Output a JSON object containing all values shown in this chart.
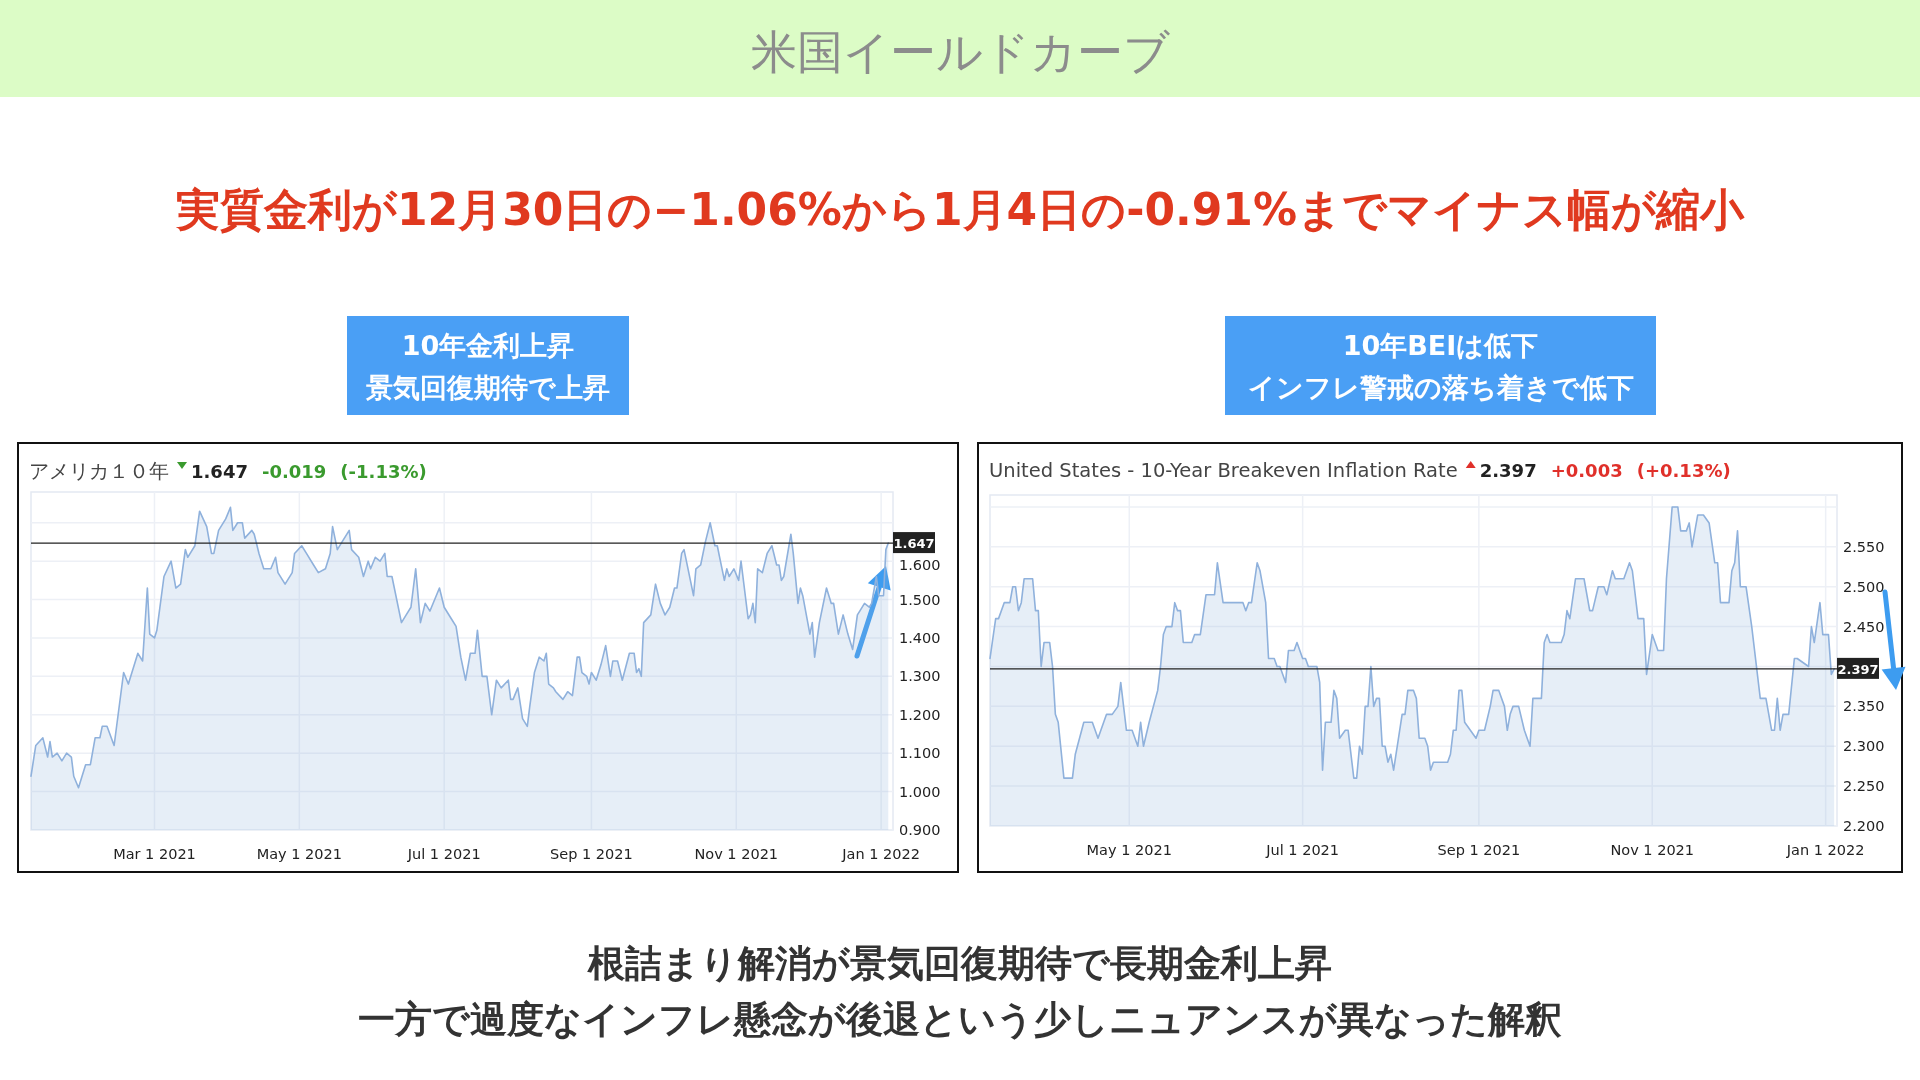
{
  "chart_data": [
    {
      "type": "other",
      "title": "米国イールドカーブ",
      "subtitle": "実質金利が12月30日の−1.06%から1月4日の-0.91%までマイナス幅が縮小",
      "annotations": [
        "根詰まり解消が景気回復期待で長期金利上昇",
        "一方で過度なインフレ懸念が後退という少しニュアンスが異なった解釈"
      ]
    },
    {
      "type": "area",
      "title": "アメリカ１０年",
      "annotations": [
        "10年金利上昇",
        "景気回復期待で上昇",
        "1.647",
        "-0.019",
        "(-1.13%)"
      ],
      "grid": true,
      "xlim": [
        "2021-01-08",
        "2022-01-06"
      ],
      "ylim": [
        0.9,
        1.78
      ],
      "xticks": [
        {
          "value": "2021-03-01",
          "label": "Mar 1 2021"
        },
        {
          "value": "2021-05-01",
          "label": "May 1 2021"
        },
        {
          "value": "2021-07-01",
          "label": "Jul 1 2021"
        },
        {
          "value": "2021-09-01",
          "label": "Sep 1 2021"
        },
        {
          "value": "2021-11-01",
          "label": "Nov 1 2021"
        },
        {
          "value": "2022-01-01",
          "label": "Jan 1 2022"
        }
      ],
      "yticks": [
        {
          "value": 0.9,
          "label": "0.900"
        },
        {
          "value": 1.0,
          "label": "1.000"
        },
        {
          "value": 1.1,
          "label": "1.100"
        },
        {
          "value": 1.2,
          "label": "1.200"
        },
        {
          "value": 1.3,
          "label": "1.300"
        },
        {
          "value": 1.4,
          "label": "1.400"
        },
        {
          "value": 1.5,
          "label": "1.500"
        },
        {
          "value": 1.6,
          "label": "1.600"
        },
        {
          "value": 1.7,
          "label": null
        }
      ],
      "ref_lines": [
        {
          "axis": "y",
          "value": 1.647,
          "label": "1.647",
          "color": "#222222"
        }
      ],
      "series": [
        {
          "color": "#8fb1dc",
          "x": [
            "2021-01-08",
            "2021-01-10",
            "2021-01-13",
            "2021-01-15",
            "2021-01-16",
            "2021-01-17",
            "2021-01-19",
            "2021-01-21",
            "2021-01-23",
            "2021-01-25",
            "2021-01-26",
            "2021-01-28",
            "2021-01-31",
            "2021-02-02",
            "2021-02-04",
            "2021-02-06",
            "2021-02-07",
            "2021-02-09",
            "2021-02-12",
            "2021-02-16",
            "2021-02-18",
            "2021-02-22",
            "2021-02-24",
            "2021-02-26",
            "2021-02-27",
            "2021-03-01",
            "2021-03-02",
            "2021-03-05",
            "2021-03-08",
            "2021-03-10",
            "2021-03-12",
            "2021-03-14",
            "2021-03-15",
            "2021-03-18",
            "2021-03-20",
            "2021-03-23",
            "2021-03-25",
            "2021-03-26",
            "2021-03-28",
            "2021-03-31",
            "2021-04-02",
            "2021-04-03",
            "2021-04-05",
            "2021-04-07",
            "2021-04-08",
            "2021-04-11",
            "2021-04-12",
            "2021-04-14",
            "2021-04-16",
            "2021-04-19",
            "2021-04-21",
            "2021-04-22",
            "2021-04-25",
            "2021-04-28",
            "2021-04-29",
            "2021-05-02",
            "2021-05-04",
            "2021-05-07",
            "2021-05-09",
            "2021-05-12",
            "2021-05-14",
            "2021-05-15",
            "2021-05-17",
            "2021-05-19",
            "2021-05-22",
            "2021-05-23",
            "2021-05-26",
            "2021-05-28",
            "2021-05-30",
            "2021-05-31",
            "2021-06-02",
            "2021-06-04",
            "2021-06-06",
            "2021-06-07",
            "2021-06-09",
            "2021-06-13",
            "2021-06-15",
            "2021-06-17",
            "2021-06-19",
            "2021-06-21",
            "2021-06-23",
            "2021-06-25",
            "2021-06-29",
            "2021-07-01",
            "2021-07-04",
            "2021-07-06",
            "2021-07-08",
            "2021-07-10",
            "2021-07-12",
            "2021-07-14",
            "2021-07-15",
            "2021-07-17",
            "2021-07-19",
            "2021-07-21",
            "2021-07-23",
            "2021-07-25",
            "2021-07-28",
            "2021-07-29",
            "2021-07-30",
            "2021-08-01",
            "2021-08-03",
            "2021-08-05",
            "2021-08-06",
            "2021-08-08",
            "2021-08-10",
            "2021-08-12",
            "2021-08-13",
            "2021-08-14",
            "2021-08-16",
            "2021-08-17",
            "2021-08-20",
            "2021-08-22",
            "2021-08-24",
            "2021-08-26",
            "2021-08-27",
            "2021-08-28",
            "2021-08-30",
            "2021-08-31",
            "2021-09-01",
            "2021-09-03",
            "2021-09-05",
            "2021-09-07",
            "2021-09-09",
            "2021-09-10",
            "2021-09-12",
            "2021-09-14",
            "2021-09-17",
            "2021-09-19",
            "2021-09-20",
            "2021-09-21",
            "2021-09-22",
            "2021-09-23",
            "2021-09-26",
            "2021-09-28",
            "2021-09-30",
            "2021-10-02",
            "2021-10-04",
            "2021-10-06",
            "2021-10-07",
            "2021-10-09",
            "2021-10-10",
            "2021-10-12",
            "2021-10-14",
            "2021-10-15",
            "2021-10-17",
            "2021-10-19",
            "2021-10-21",
            "2021-10-23",
            "2021-10-24",
            "2021-10-25",
            "2021-10-27",
            "2021-10-28",
            "2021-10-29",
            "2021-10-31",
            "2021-11-02",
            "2021-11-03",
            "2021-11-06",
            "2021-11-07",
            "2021-11-08",
            "2021-11-09",
            "2021-11-10",
            "2021-11-12",
            "2021-11-14",
            "2021-11-16",
            "2021-11-18",
            "2021-11-19",
            "2021-11-20",
            "2021-11-21",
            "2021-11-24",
            "2021-11-25",
            "2021-11-27",
            "2021-11-28",
            "2021-11-29",
            "2021-12-02",
            "2021-12-03",
            "2021-12-04",
            "2021-12-06",
            "2021-12-09",
            "2021-12-11",
            "2021-12-12",
            "2021-12-14",
            "2021-12-16",
            "2021-12-18",
            "2021-12-20",
            "2021-12-22",
            "2021-12-23",
            "2021-12-25",
            "2021-12-27",
            "2021-12-28",
            "2021-12-30",
            "2021-12-31",
            "2022-01-02",
            "2022-01-03",
            "2022-01-04"
          ],
          "values": [
            1.04,
            1.12,
            1.14,
            1.09,
            1.13,
            1.09,
            1.1,
            1.08,
            1.1,
            1.09,
            1.04,
            1.01,
            1.07,
            1.07,
            1.14,
            1.14,
            1.17,
            1.17,
            1.12,
            1.31,
            1.28,
            1.36,
            1.34,
            1.53,
            1.41,
            1.4,
            1.42,
            1.56,
            1.6,
            1.53,
            1.54,
            1.63,
            1.61,
            1.64,
            1.73,
            1.69,
            1.62,
            1.62,
            1.68,
            1.71,
            1.74,
            1.68,
            1.7,
            1.7,
            1.66,
            1.68,
            1.67,
            1.62,
            1.58,
            1.58,
            1.61,
            1.57,
            1.54,
            1.57,
            1.62,
            1.64,
            1.62,
            1.59,
            1.57,
            1.58,
            1.62,
            1.69,
            1.63,
            1.65,
            1.68,
            1.63,
            1.61,
            1.56,
            1.6,
            1.58,
            1.61,
            1.6,
            1.62,
            1.56,
            1.56,
            1.44,
            1.46,
            1.48,
            1.58,
            1.44,
            1.49,
            1.47,
            1.53,
            1.48,
            1.45,
            1.43,
            1.35,
            1.29,
            1.36,
            1.36,
            1.42,
            1.3,
            1.3,
            1.2,
            1.29,
            1.27,
            1.29,
            1.24,
            1.24,
            1.27,
            1.19,
            1.17,
            1.22,
            1.31,
            1.35,
            1.34,
            1.36,
            1.28,
            1.27,
            1.26,
            1.24,
            1.26,
            1.25,
            1.35,
            1.35,
            1.31,
            1.3,
            1.28,
            1.31,
            1.29,
            1.33,
            1.38,
            1.3,
            1.34,
            1.34,
            1.29,
            1.36,
            1.36,
            1.31,
            1.32,
            1.3,
            1.44,
            1.46,
            1.54,
            1.49,
            1.46,
            1.48,
            1.53,
            1.53,
            1.62,
            1.63,
            1.57,
            1.51,
            1.58,
            1.59,
            1.65,
            1.7,
            1.64,
            1.64,
            1.61,
            1.55,
            1.58,
            1.56,
            1.58,
            1.55,
            1.6,
            1.45,
            1.46,
            1.49,
            1.44,
            1.58,
            1.57,
            1.62,
            1.64,
            1.59,
            1.59,
            1.55,
            1.56,
            1.67,
            1.62,
            1.49,
            1.53,
            1.51,
            1.41,
            1.44,
            1.35,
            1.44,
            1.53,
            1.49,
            1.49,
            1.41,
            1.46,
            1.41,
            1.37,
            1.46,
            1.47,
            1.49,
            1.48,
            1.49,
            1.56,
            1.51,
            1.51,
            1.63,
            1.647
          ]
        }
      ]
    },
    {
      "type": "area",
      "title": "United States - 10-Year Breakeven Inflation Rate",
      "annotations": [
        "10年BEIは低下",
        "インフレ警戒の落ち着きで低下",
        "2.397",
        "+0.003",
        "(+0.13%)"
      ],
      "grid": true,
      "xlim": [
        "2021-03-13",
        "2022-01-05"
      ],
      "ylim": [
        2.2,
        2.615
      ],
      "xticks": [
        {
          "value": "2021-05-01",
          "label": "May 1 2021"
        },
        {
          "value": "2021-07-01",
          "label": "Jul 1 2021"
        },
        {
          "value": "2021-09-01",
          "label": "Sep 1 2021"
        },
        {
          "value": "2021-11-01",
          "label": "Nov 1 2021"
        },
        {
          "value": "2022-01-01",
          "label": "Jan 1 2022"
        }
      ],
      "yticks": [
        {
          "value": 2.2,
          "label": "2.200"
        },
        {
          "value": 2.25,
          "label": "2.250"
        },
        {
          "value": 2.3,
          "label": "2.300"
        },
        {
          "value": 2.35,
          "label": "2.350"
        },
        {
          "value": 2.4,
          "label": null
        },
        {
          "value": 2.45,
          "label": "2.450"
        },
        {
          "value": 2.5,
          "label": "2.500"
        },
        {
          "value": 2.55,
          "label": "2.550"
        },
        {
          "value": 2.6,
          "label": null
        }
      ],
      "ref_lines": [
        {
          "axis": "y",
          "value": 2.397,
          "label": "2.397",
          "color": "#222222"
        }
      ],
      "series": [
        {
          "color": "#8fb1dc",
          "x": [
            "2021-03-13",
            "2021-03-15",
            "2021-03-16",
            "2021-03-18",
            "2021-03-20",
            "2021-03-21",
            "2021-03-22",
            "2021-03-23",
            "2021-03-24",
            "2021-03-25",
            "2021-03-28",
            "2021-03-29",
            "2021-03-30",
            "2021-03-31",
            "2021-04-01",
            "2021-04-03",
            "2021-04-04",
            "2021-04-05",
            "2021-04-06",
            "2021-04-08",
            "2021-04-09",
            "2021-04-11",
            "2021-04-12",
            "2021-04-15",
            "2021-04-18",
            "2021-04-20",
            "2021-04-21",
            "2021-04-22",
            "2021-04-23",
            "2021-04-25",
            "2021-04-27",
            "2021-04-28",
            "2021-04-30",
            "2021-05-02",
            "2021-05-04",
            "2021-05-05",
            "2021-05-06",
            "2021-05-08",
            "2021-05-11",
            "2021-05-12",
            "2021-05-13",
            "2021-05-14",
            "2021-05-16",
            "2021-05-17",
            "2021-05-18",
            "2021-05-19",
            "2021-05-20",
            "2021-05-23",
            "2021-05-24",
            "2021-05-26",
            "2021-05-28",
            "2021-05-31",
            "2021-06-01",
            "2021-06-03",
            "2021-06-05",
            "2021-06-08",
            "2021-06-10",
            "2021-06-11",
            "2021-06-12",
            "2021-06-13",
            "2021-06-15",
            "2021-06-16",
            "2021-06-18",
            "2021-06-19",
            "2021-06-21",
            "2021-06-22",
            "2021-06-23",
            "2021-06-25",
            "2021-06-26",
            "2021-06-28",
            "2021-06-29",
            "2021-07-01",
            "2021-07-02",
            "2021-07-03",
            "2021-07-06",
            "2021-07-07",
            "2021-07-08",
            "2021-07-09",
            "2021-07-11",
            "2021-07-12",
            "2021-07-13",
            "2021-07-14",
            "2021-07-16",
            "2021-07-17",
            "2021-07-19",
            "2021-07-20",
            "2021-07-21",
            "2021-07-22",
            "2021-07-23",
            "2021-07-24",
            "2021-07-25",
            "2021-07-26",
            "2021-07-27",
            "2021-07-28",
            "2021-07-29",
            "2021-07-30",
            "2021-07-31",
            "2021-08-01",
            "2021-08-02",
            "2021-08-05",
            "2021-08-06",
            "2021-08-07",
            "2021-08-09",
            "2021-08-10",
            "2021-08-11",
            "2021-08-13",
            "2021-08-14",
            "2021-08-15",
            "2021-08-16",
            "2021-08-19",
            "2021-08-21",
            "2021-08-22",
            "2021-08-23",
            "2021-08-24",
            "2021-08-25",
            "2021-08-26",
            "2021-08-27",
            "2021-08-29",
            "2021-08-31",
            "2021-09-01",
            "2021-09-03",
            "2021-09-05",
            "2021-09-06",
            "2021-09-08",
            "2021-09-10",
            "2021-09-11",
            "2021-09-12",
            "2021-09-13",
            "2021-09-15",
            "2021-09-17",
            "2021-09-19",
            "2021-09-20",
            "2021-09-21",
            "2021-09-23",
            "2021-09-24",
            "2021-09-25",
            "2021-09-26",
            "2021-09-27",
            "2021-09-30",
            "2021-10-01",
            "2021-10-02",
            "2021-10-03",
            "2021-10-05",
            "2021-10-08",
            "2021-10-10",
            "2021-10-11",
            "2021-10-13",
            "2021-10-15",
            "2021-10-16",
            "2021-10-18",
            "2021-10-19",
            "2021-10-22",
            "2021-10-24",
            "2021-10-25",
            "2021-10-27",
            "2021-10-29",
            "2021-10-30",
            "2021-11-01",
            "2021-11-03",
            "2021-11-05",
            "2021-11-06",
            "2021-11-08",
            "2021-11-10",
            "2021-11-11",
            "2021-11-13",
            "2021-11-14",
            "2021-11-15",
            "2021-11-17",
            "2021-11-19",
            "2021-11-21",
            "2021-11-23",
            "2021-11-24",
            "2021-11-25",
            "2021-11-28",
            "2021-11-29",
            "2021-11-30",
            "2021-12-01",
            "2021-12-02",
            "2021-12-04",
            "2021-12-06",
            "2021-12-09",
            "2021-12-11",
            "2021-12-13",
            "2021-12-14",
            "2021-12-15",
            "2021-12-16",
            "2021-12-17",
            "2021-12-19",
            "2021-12-21",
            "2021-12-22",
            "2021-12-26",
            "2021-12-27",
            "2021-12-28",
            "2021-12-30",
            "2021-12-31",
            "2022-01-02",
            "2022-01-03",
            "2022-01-04"
          ],
          "values": [
            2.41,
            2.46,
            2.46,
            2.48,
            2.48,
            2.5,
            2.5,
            2.47,
            2.48,
            2.51,
            2.51,
            2.47,
            2.47,
            2.4,
            2.43,
            2.43,
            2.4,
            2.34,
            2.33,
            2.26,
            2.26,
            2.26,
            2.29,
            2.33,
            2.33,
            2.31,
            2.32,
            2.33,
            2.34,
            2.34,
            2.35,
            2.38,
            2.32,
            2.32,
            2.3,
            2.33,
            2.3,
            2.33,
            2.37,
            2.4,
            2.44,
            2.45,
            2.45,
            2.48,
            2.47,
            2.47,
            2.43,
            2.43,
            2.44,
            2.44,
            2.49,
            2.49,
            2.53,
            2.48,
            2.48,
            2.48,
            2.48,
            2.47,
            2.48,
            2.48,
            2.53,
            2.52,
            2.48,
            2.41,
            2.41,
            2.4,
            2.4,
            2.38,
            2.42,
            2.42,
            2.43,
            2.41,
            2.41,
            2.4,
            2.4,
            2.38,
            2.27,
            2.33,
            2.33,
            2.37,
            2.36,
            2.31,
            2.32,
            2.32,
            2.26,
            2.26,
            2.3,
            2.29,
            2.35,
            2.35,
            2.4,
            2.35,
            2.36,
            2.36,
            2.3,
            2.3,
            2.28,
            2.29,
            2.27,
            2.34,
            2.34,
            2.37,
            2.37,
            2.36,
            2.31,
            2.31,
            2.3,
            2.27,
            2.28,
            2.28,
            2.28,
            2.29,
            2.32,
            2.32,
            2.37,
            2.37,
            2.33,
            2.32,
            2.31,
            2.32,
            2.32,
            2.35,
            2.37,
            2.37,
            2.35,
            2.32,
            2.34,
            2.35,
            2.35,
            2.32,
            2.3,
            2.36,
            2.36,
            2.36,
            2.43,
            2.44,
            2.43,
            2.43,
            2.43,
            2.44,
            2.47,
            2.46,
            2.51,
            2.51,
            2.47,
            2.47,
            2.5,
            2.5,
            2.49,
            2.52,
            2.51,
            2.51,
            2.53,
            2.52,
            2.46,
            2.46,
            2.39,
            2.44,
            2.42,
            2.42,
            2.51,
            2.6,
            2.6,
            2.57,
            2.57,
            2.58,
            2.55,
            2.59,
            2.59,
            2.58,
            2.53,
            2.53,
            2.48,
            2.48,
            2.52,
            2.53,
            2.57,
            2.5,
            2.5,
            2.45,
            2.36,
            2.36,
            2.32,
            2.32,
            2.36,
            2.32,
            2.34,
            2.34,
            2.41,
            2.41,
            2.4,
            2.45,
            2.43,
            2.48,
            2.44,
            2.44,
            2.39,
            2.397
          ]
        }
      ]
    }
  ]
}
